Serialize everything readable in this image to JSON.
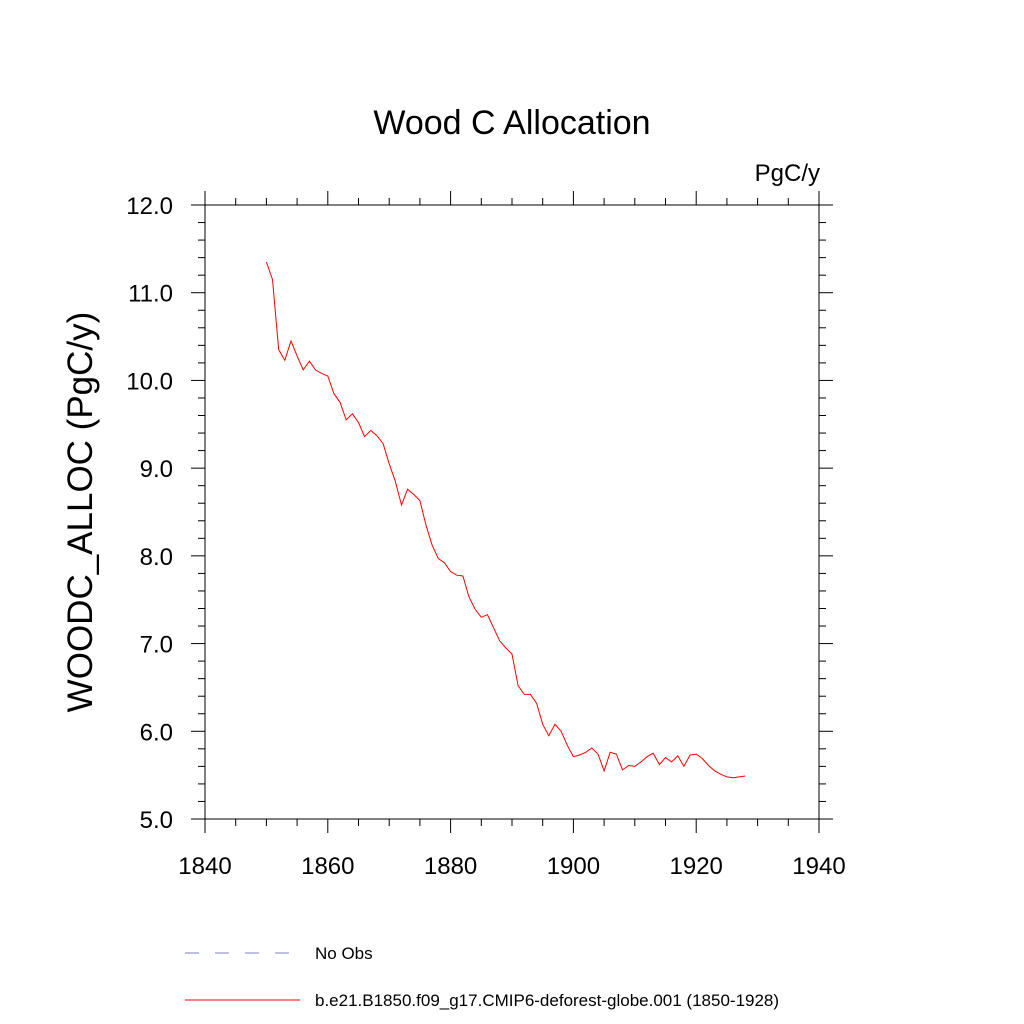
{
  "chart_data": {
    "type": "line",
    "title": "Wood C Allocation",
    "units_label": "PgC/y",
    "ylabel": "WOODC_ALLOC  (PgC/y)",
    "xlabel": "",
    "xlim": [
      1840,
      1940
    ],
    "ylim": [
      5.0,
      12.0
    ],
    "x_ticks": [
      "1840",
      "1860",
      "1880",
      "1900",
      "1920",
      "1940"
    ],
    "y_ticks": [
      "5.0",
      "6.0",
      "7.0",
      "8.0",
      "9.0",
      "10.0",
      "11.0",
      "12.0"
    ],
    "grid": false,
    "legend_position": "bottom",
    "series": [
      {
        "name": "No Obs",
        "color": "#8080c0",
        "dashed": true,
        "x": [],
        "y": []
      },
      {
        "name": "b.e21.B1850.f09_g17.CMIP6-deforest-globe.001 (1850-1928)",
        "color": "#ff0000",
        "dashed": false,
        "x": [
          1850,
          1851,
          1852,
          1853,
          1854,
          1855,
          1856,
          1857,
          1858,
          1859,
          1860,
          1861,
          1862,
          1863,
          1864,
          1865,
          1866,
          1867,
          1868,
          1869,
          1870,
          1871,
          1872,
          1873,
          1874,
          1875,
          1876,
          1877,
          1878,
          1879,
          1880,
          1881,
          1882,
          1883,
          1884,
          1885,
          1886,
          1887,
          1888,
          1889,
          1890,
          1891,
          1892,
          1893,
          1894,
          1895,
          1896,
          1897,
          1898,
          1899,
          1900,
          1901,
          1902,
          1903,
          1904,
          1905,
          1906,
          1907,
          1908,
          1909,
          1910,
          1911,
          1912,
          1913,
          1914,
          1915,
          1916,
          1917,
          1918,
          1919,
          1920,
          1921,
          1922,
          1923,
          1924,
          1925,
          1926,
          1927,
          1928
        ],
        "y": [
          11.35,
          11.15,
          10.35,
          10.23,
          10.45,
          10.28,
          10.12,
          10.22,
          10.12,
          10.08,
          10.05,
          9.85,
          9.75,
          9.55,
          9.62,
          9.52,
          9.36,
          9.43,
          9.37,
          9.28,
          9.05,
          8.85,
          8.58,
          8.76,
          8.7,
          8.63,
          8.35,
          8.12,
          7.97,
          7.92,
          7.82,
          7.78,
          7.77,
          7.53,
          7.39,
          7.3,
          7.33,
          7.18,
          7.03,
          6.95,
          6.88,
          6.52,
          6.42,
          6.42,
          6.32,
          6.08,
          5.95,
          6.08,
          6.0,
          5.84,
          5.71,
          5.73,
          5.76,
          5.81,
          5.74,
          5.55,
          5.76,
          5.74,
          5.56,
          5.61,
          5.6,
          5.65,
          5.71,
          5.75,
          5.62,
          5.7,
          5.65,
          5.72,
          5.6,
          5.73,
          5.74,
          5.69,
          5.61,
          5.55,
          5.51,
          5.48,
          5.47,
          5.48,
          5.49
        ]
      }
    ]
  }
}
